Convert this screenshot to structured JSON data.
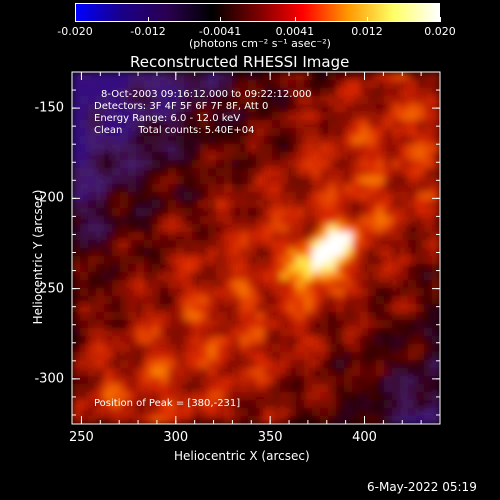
{
  "colorbar": {
    "tick_labels": [
      "-0.020",
      "-0.012",
      "-0.0041",
      "0.0041",
      "0.012",
      "0.020"
    ],
    "tick_values": [
      -0.02,
      -0.012,
      -0.0041,
      0.0041,
      0.012,
      0.02
    ],
    "range": [
      -0.02,
      0.02
    ],
    "units_label": "(photons cm⁻² s⁻¹ asec⁻²)",
    "colors": [
      "#0000ff",
      "#1a0088",
      "#2a0050",
      "#000000",
      "#7a0000",
      "#ff0000",
      "#ff9900",
      "#ffff66",
      "#ffffff"
    ]
  },
  "chart_data": {
    "type": "heatmap",
    "title": "Reconstructed RHESSI Image",
    "xlabel": "Heliocentric X (arcsec)",
    "ylabel": "Heliocentric Y (arcsec)",
    "xlim": [
      245,
      440
    ],
    "ylim": [
      -325,
      -130
    ],
    "x_ticks": [
      250,
      300,
      350,
      400
    ],
    "y_ticks": [
      -150,
      -200,
      -250,
      -300
    ],
    "peak": [
      380,
      -231
    ],
    "annotations": {
      "time": "8-Oct-2003 09:16:12.000 to 09:22:12.000",
      "detectors": "Detectors: 3F 4F 5F 6F 7F 8F, Att 0",
      "energy": "Energy Range: 6.0 - 12.0 keV",
      "clean": "Clean     Total counts: 5.40E+04",
      "peak_text": "Position of Peak = [380,-231]"
    }
  },
  "footer": {
    "timestamp": "6-May-2022 05:19"
  }
}
